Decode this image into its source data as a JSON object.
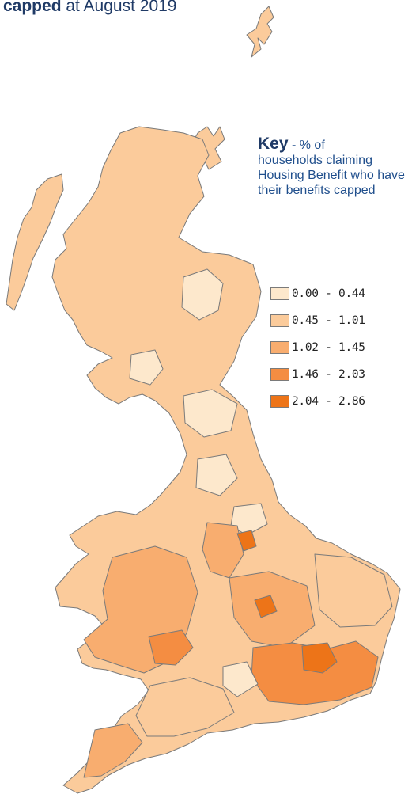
{
  "title": {
    "bold": "capped",
    "rest": " at August 2019"
  },
  "key": {
    "heading": "Key",
    "dash": " - ",
    "text_line1": "% of",
    "text_rest": "households claiming Housing Benefit who have their benefits capped"
  },
  "legend": [
    {
      "label": "0.00 - 0.44",
      "color": "#fde8cc"
    },
    {
      "label": "0.45 - 1.01",
      "color": "#fbcb9b"
    },
    {
      "label": "1.02 - 1.45",
      "color": "#f8ad6f"
    },
    {
      "label": "1.46 - 2.03",
      "color": "#f48d42"
    },
    {
      "label": "2.04 - 2.86",
      "color": "#ed7418"
    }
  ],
  "map": {
    "subject": "choropleth map of Great Britain local authorities",
    "border_color": "#7a7a7a"
  }
}
